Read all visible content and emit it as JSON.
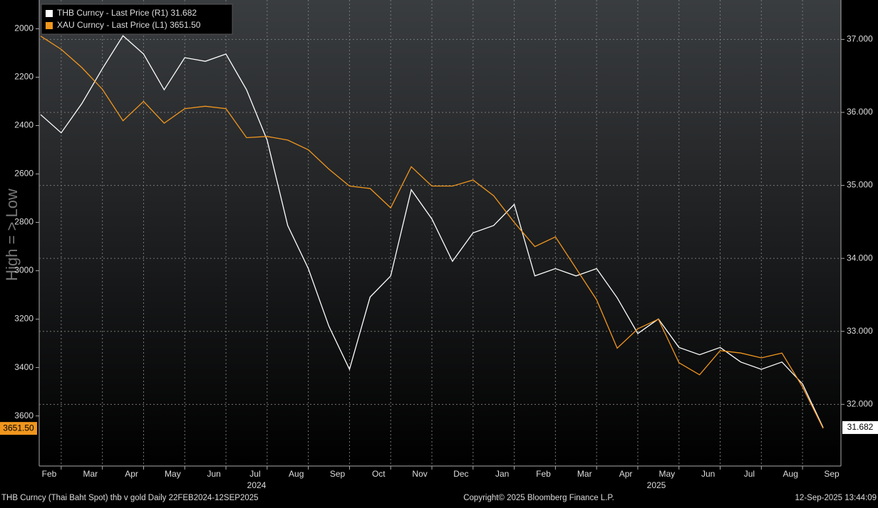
{
  "chart_data": {
    "type": "line",
    "y_axis_label": "High = > Low",
    "categories": [
      "Feb",
      null,
      "Mar",
      null,
      "Apr",
      null,
      "May",
      null,
      "Jun",
      null,
      "Jul",
      null,
      "Aug",
      null,
      "Sep",
      null,
      "Oct",
      null,
      "Nov",
      null,
      "Dec",
      null,
      "Jan",
      null,
      "Feb",
      null,
      "Mar",
      null,
      "Apr",
      null,
      "May",
      null,
      "Jun",
      null,
      "Jul",
      null,
      "Aug",
      null,
      "Sep"
    ],
    "year_labels": [
      "2024",
      "2025"
    ],
    "ylim": [
      1881,
      3807
    ],
    "y_inverted": true,
    "yticks": [
      2000,
      2200,
      2400,
      2600,
      2800,
      3000,
      3200,
      3400,
      3600
    ],
    "y2lim": [
      31.155,
      37.54
    ],
    "y2ticks": [
      {
        "value": 32,
        "label": "32.000"
      },
      {
        "value": 33,
        "label": "33.000"
      },
      {
        "value": 34,
        "label": "34.000"
      },
      {
        "value": 35,
        "label": "35.000"
      },
      {
        "value": 36,
        "label": "36.000"
      },
      {
        "value": 37,
        "label": "37.000"
      }
    ],
    "grid": true,
    "legend": "top-left",
    "series": [
      {
        "name": "THB Curncy - Last Price (R1)",
        "legend_value": "31.682",
        "last_label": "31.682",
        "color": "#ffffff",
        "axis": "y2",
        "values": [
          35.97,
          35.72,
          36.12,
          36.6,
          37.05,
          36.8,
          36.31,
          36.75,
          36.7,
          36.8,
          36.31,
          35.62,
          34.45,
          33.86,
          33.07,
          32.48,
          33.47,
          33.76,
          34.94,
          34.54,
          33.96,
          34.35,
          34.45,
          34.74,
          33.76,
          33.86,
          33.76,
          33.86,
          33.46,
          32.97,
          33.17,
          32.78,
          32.68,
          32.78,
          32.58,
          32.48,
          32.58,
          32.28,
          31.682
        ]
      },
      {
        "name": "XAU Curncy - Last Price (L1)",
        "legend_value": "3651.50",
        "last_label": "3651.50",
        "color": "#f0961e",
        "axis": "y",
        "values": [
          2030,
          2085,
          2160,
          2250,
          2380,
          2300,
          2390,
          2330,
          2320,
          2330,
          2450,
          2445,
          2460,
          2500,
          2580,
          2650,
          2660,
          2740,
          2570,
          2650,
          2650,
          2625,
          2690,
          2800,
          2900,
          2860,
          2990,
          3120,
          3320,
          3240,
          3200,
          3380,
          3430,
          3330,
          3340,
          3360,
          3340,
          3480,
          3651.5
        ]
      }
    ],
    "footer_left": "THB Curncy (Thai Baht Spot) thb v gold  Daily 22FEB2024-12SEP2025",
    "footer_center": "Copyright© 2025 Bloomberg Finance L.P.",
    "footer_right": "12-Sep-2025 13:44:09"
  }
}
